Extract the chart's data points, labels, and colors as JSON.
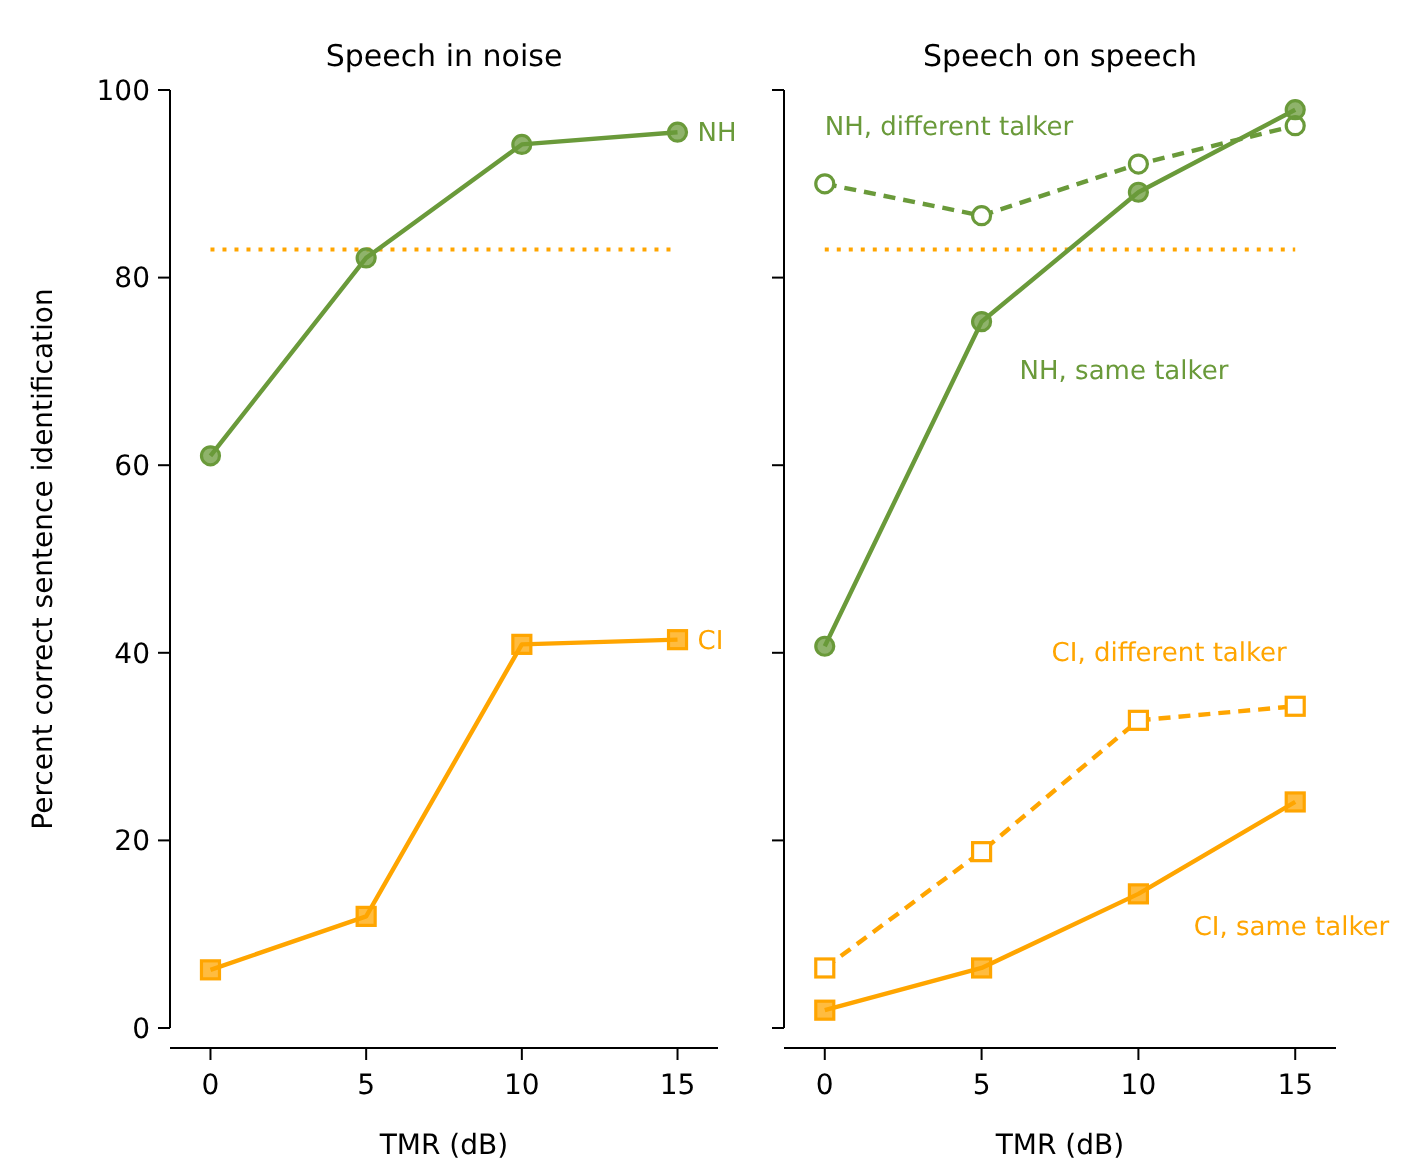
{
  "chart_data": [
    {
      "type": "line",
      "title": "Speech in noise",
      "xlabel": "TMR (dB)",
      "ylabel": "Percent correct sentence identification",
      "x": [
        0,
        5,
        10,
        15
      ],
      "xlim": [
        -1.3,
        16.3
      ],
      "xticks": [
        0,
        5,
        10,
        15
      ],
      "ylim": [
        0,
        100
      ],
      "yticks": [
        0,
        20,
        40,
        60,
        80,
        100
      ],
      "grid": false,
      "legend": false,
      "series": [
        {
          "name": "NH",
          "color": "#6a9a3a",
          "values": [
            61,
            82.1,
            94.2,
            95.5
          ],
          "marker": "circle",
          "line_style": "solid"
        },
        {
          "name": "CI",
          "color": "#ffa500",
          "values": [
            6.2,
            11.9,
            40.9,
            41.4
          ],
          "marker": "square",
          "line_style": "solid"
        }
      ],
      "ref_lines": [
        {
          "axis": "y",
          "value": 83,
          "color": "#ffa500",
          "line_style": "dotted"
        }
      ]
    },
    {
      "type": "line",
      "title": "Speech on speech",
      "xlabel": "TMR (dB)",
      "x": [
        0,
        5,
        10,
        15
      ],
      "xlim": [
        -1.3,
        16.3
      ],
      "xticks": [
        0,
        5,
        10,
        15
      ],
      "ylim": [
        0,
        100
      ],
      "yticks": [
        0,
        20,
        40,
        60,
        80,
        100
      ],
      "tick_labels": "x",
      "grid": false,
      "legend": false,
      "series": [
        {
          "name": "NH, different talker",
          "color": "#6a9a3a",
          "values": [
            90,
            86.6,
            92.1,
            96.2
          ],
          "marker": "circle",
          "line_style": "dashed"
        },
        {
          "name": "NH, same talker",
          "color": "#6a9a3a",
          "values": [
            40.7,
            75.3,
            89.1,
            97.9
          ],
          "marker": "circle",
          "line_style": "solid"
        },
        {
          "name": "CI, different talker",
          "color": "#ffa500",
          "values": [
            6.4,
            18.8,
            32.8,
            34.3
          ],
          "marker": "square",
          "line_style": "dashed"
        },
        {
          "name": "CI, same talker",
          "color": "#ffa500",
          "values": [
            1.9,
            6.4,
            14.3,
            24.1
          ],
          "marker": "square",
          "line_style": "solid"
        }
      ],
      "ref_lines": [
        {
          "axis": "y",
          "value": 83,
          "color": "#ffa500",
          "line_style": "dotted"
        }
      ]
    }
  ]
}
